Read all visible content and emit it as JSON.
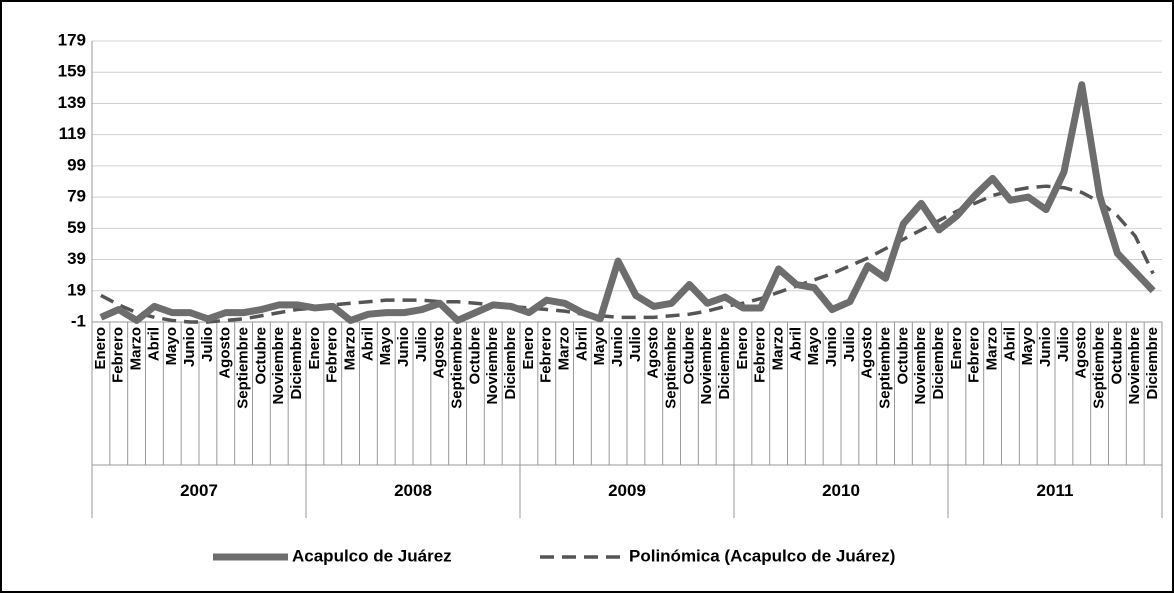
{
  "chart_data": {
    "type": "line",
    "categories": [
      "Enero",
      "Febrero",
      "Marzo",
      "Abril",
      "Mayo",
      "Junio",
      "Julio",
      "Agosto",
      "Septiembre",
      "Octubre",
      "Noviembre",
      "Diciembre",
      "Enero",
      "Febrero",
      "Marzo",
      "Abril",
      "Mayo",
      "Junio",
      "Julio",
      "Agosto",
      "Septiembre",
      "Octubre",
      "Noviembre",
      "Diciembre",
      "Enero",
      "Febrero",
      "Marzo",
      "Abril",
      "Mayo",
      "Junio",
      "Julio",
      "Agosto",
      "Septiembre",
      "Octubre",
      "Noviembre",
      "Diciembre",
      "Enero",
      "Febrero",
      "Marzo",
      "Abril",
      "Mayo",
      "Junio",
      "Julio",
      "Agosto",
      "Septiembre",
      "Octubre",
      "Noviembre",
      "Diciembre",
      "Enero",
      "Febrero",
      "Marzo",
      "Abril",
      "Mayo",
      "Junio",
      "Julio",
      "Agosto",
      "Septiembre",
      "Octubre",
      "Noviembre",
      "Diciembre"
    ],
    "years": [
      "2007",
      "2008",
      "2009",
      "2010",
      "2011"
    ],
    "series": [
      {
        "name": "Acapulco de Juárez",
        "color": "#6d6d6d",
        "style": "solid",
        "values": [
          2,
          7,
          0,
          9,
          5,
          5,
          1,
          5,
          5,
          7,
          10,
          10,
          8,
          9,
          0,
          4,
          5,
          5,
          7,
          11,
          0,
          5,
          10,
          9,
          5,
          13,
          11,
          5,
          1,
          38,
          16,
          9,
          11,
          23,
          11,
          15,
          8,
          8,
          33,
          23,
          21,
          7,
          12,
          35,
          27,
          62,
          75,
          58,
          67,
          80,
          91,
          77,
          79,
          71,
          95,
          151,
          80,
          43,
          31,
          19
        ]
      },
      {
        "name": "Polinómica (Acapulco de Juárez)",
        "color": "#555555",
        "style": "dashed",
        "values": [
          16,
          10,
          5,
          2,
          0,
          -1,
          -1,
          0,
          1,
          3,
          5,
          7,
          8,
          10,
          11,
          12,
          13,
          13,
          13,
          12,
          12,
          11,
          10,
          9,
          8,
          7,
          6,
          4,
          3,
          2,
          2,
          2,
          3,
          4,
          6,
          9,
          11,
          14,
          18,
          22,
          26,
          30,
          35,
          40,
          46,
          52,
          58,
          64,
          70,
          75,
          80,
          83,
          85,
          86,
          85,
          82,
          76,
          67,
          54,
          30
        ]
      }
    ],
    "ylim": [
      -1,
      179
    ],
    "yticks": [
      -1,
      19,
      39,
      59,
      79,
      99,
      119,
      139,
      159,
      179
    ],
    "grid": true,
    "legend": "bottom"
  }
}
